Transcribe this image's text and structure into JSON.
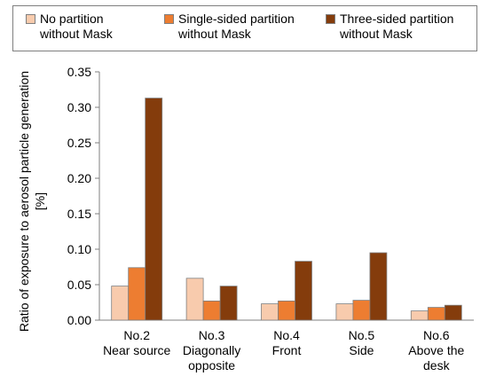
{
  "chart_data": {
    "type": "bar",
    "categories": [
      [
        "No.2",
        "Near source"
      ],
      [
        "No.3",
        "Diagonally",
        "opposite"
      ],
      [
        "No.4",
        "Front"
      ],
      [
        "No.5",
        "Side"
      ],
      [
        "No.6",
        "Above the",
        "desk"
      ]
    ],
    "series": [
      {
        "name": [
          "No partition",
          "without Mask"
        ],
        "color": "#f8cbad",
        "values": [
          0.048,
          0.059,
          0.023,
          0.023,
          0.013
        ]
      },
      {
        "name": [
          "Single-sided partition",
          "without Mask"
        ],
        "color": "#ed7d31",
        "values": [
          0.074,
          0.027,
          0.027,
          0.028,
          0.018
        ]
      },
      {
        "name": [
          "Three-sided partition",
          "without Mask"
        ],
        "color": "#843c0c",
        "values": [
          0.313,
          0.048,
          0.083,
          0.095,
          0.021
        ]
      }
    ],
    "ylabel": [
      "Ratio of exposure to aerosol particle generation",
      "[%]"
    ],
    "ylim": [
      0,
      0.35
    ],
    "yticks": [
      "0.00",
      "0.05",
      "0.10",
      "0.15",
      "0.20",
      "0.25",
      "0.30",
      "0.35"
    ],
    "grid": false,
    "legend": "top"
  }
}
